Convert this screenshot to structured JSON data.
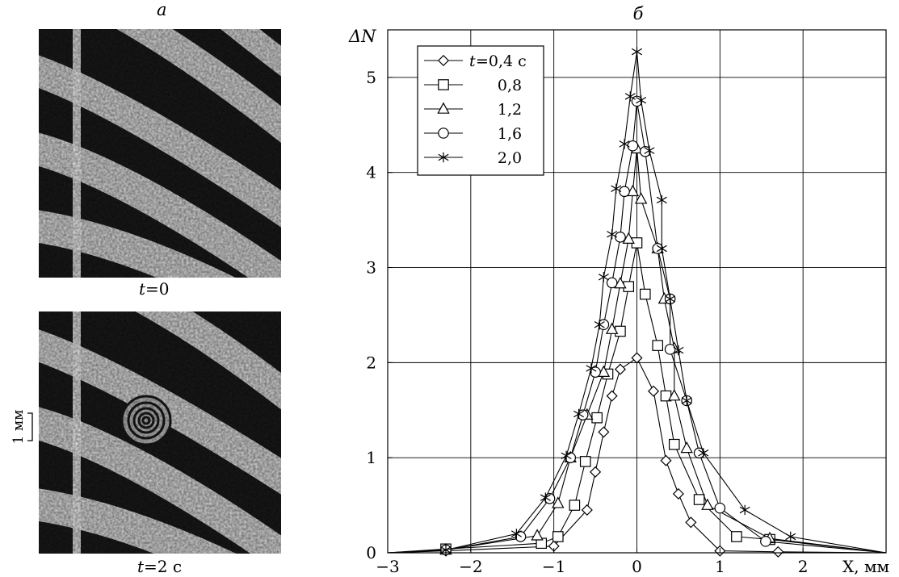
{
  "panel_a": {
    "label": "a",
    "top_caption_var": "t",
    "top_caption_val": "=0",
    "bottom_caption_var": "t",
    "bottom_caption_val": "=2 с",
    "scale_label": "1 мм"
  },
  "panel_b": {
    "label": "б"
  },
  "chart_data": {
    "type": "line",
    "xlabel": "X, мм",
    "ylabel": "ΔN",
    "xlim": [
      -3,
      3
    ],
    "ylim": [
      0,
      5.5
    ],
    "x_ticks": [
      -3,
      -2,
      -1,
      0,
      1,
      2
    ],
    "x_tick_labels": [
      "−3",
      "−2",
      "−1",
      "0",
      "1",
      "2"
    ],
    "y_ticks": [
      0,
      1,
      2,
      3,
      4,
      5
    ],
    "y_tick_labels": [
      "0",
      "1",
      "2",
      "3",
      "4",
      "5"
    ],
    "grid": true,
    "legend_position": "top-left",
    "legend_prefix": "t=",
    "legend_suffix": " с",
    "series": [
      {
        "name": "0,4",
        "marker": "diamond",
        "points": [
          [
            -3,
            0
          ],
          [
            -2.3,
            0.02
          ],
          [
            -1,
            0.07
          ],
          [
            -0.6,
            0.45
          ],
          [
            -0.5,
            0.85
          ],
          [
            -0.4,
            1.27
          ],
          [
            -0.3,
            1.65
          ],
          [
            -0.2,
            1.93
          ],
          [
            0,
            2.05
          ],
          [
            0.2,
            1.7
          ],
          [
            0.35,
            0.97
          ],
          [
            0.5,
            0.62
          ],
          [
            0.65,
            0.32
          ],
          [
            1.0,
            0.02
          ],
          [
            1.7,
            0.01
          ],
          [
            3,
            0
          ]
        ]
      },
      {
        "name": "0,8",
        "marker": "square",
        "points": [
          [
            -3,
            0
          ],
          [
            -2.3,
            0.04
          ],
          [
            -1.15,
            0.1
          ],
          [
            -0.95,
            0.17
          ],
          [
            -0.75,
            0.5
          ],
          [
            -0.62,
            0.96
          ],
          [
            -0.48,
            1.42
          ],
          [
            -0.35,
            1.88
          ],
          [
            -0.2,
            2.33
          ],
          [
            -0.1,
            2.8
          ],
          [
            0,
            3.26
          ],
          [
            0.1,
            2.72
          ],
          [
            0.25,
            2.18
          ],
          [
            0.35,
            1.65
          ],
          [
            0.45,
            1.14
          ],
          [
            0.75,
            0.56
          ],
          [
            1.2,
            0.17
          ],
          [
            1.6,
            0.14
          ],
          [
            3,
            0
          ]
        ]
      },
      {
        "name": "1,2",
        "marker": "triangle",
        "points": [
          [
            -3,
            0
          ],
          [
            -2.3,
            0.03
          ],
          [
            -1.2,
            0.18
          ],
          [
            -0.95,
            0.52
          ],
          [
            -0.8,
            1.0
          ],
          [
            -0.6,
            1.45
          ],
          [
            -0.4,
            1.9
          ],
          [
            -0.3,
            2.35
          ],
          [
            -0.2,
            2.83
          ],
          [
            -0.1,
            3.3
          ],
          [
            -0.05,
            3.8
          ],
          [
            0,
            4.25
          ],
          [
            0.05,
            3.72
          ],
          [
            0.25,
            3.2
          ],
          [
            0.33,
            2.67
          ],
          [
            0.45,
            2.15
          ],
          [
            0.45,
            1.65
          ],
          [
            0.6,
            1.1
          ],
          [
            0.85,
            0.5
          ],
          [
            1.6,
            0.15
          ],
          [
            3,
            0
          ]
        ]
      },
      {
        "name": "1,6",
        "marker": "circle",
        "points": [
          [
            -3,
            0
          ],
          [
            -2.3,
            0.03
          ],
          [
            -1.4,
            0.17
          ],
          [
            -1.05,
            0.57
          ],
          [
            -0.8,
            1.0
          ],
          [
            -0.65,
            1.45
          ],
          [
            -0.5,
            1.9
          ],
          [
            -0.4,
            2.4
          ],
          [
            -0.3,
            2.84
          ],
          [
            -0.2,
            3.32
          ],
          [
            -0.15,
            3.8
          ],
          [
            -0.05,
            4.28
          ],
          [
            0,
            4.75
          ],
          [
            0.1,
            4.22
          ],
          [
            0.25,
            3.2
          ],
          [
            0.4,
            2.67
          ],
          [
            0.4,
            2.14
          ],
          [
            0.6,
            1.6
          ],
          [
            0.75,
            1.05
          ],
          [
            1.0,
            0.47
          ],
          [
            1.55,
            0.12
          ],
          [
            3,
            0
          ]
        ]
      },
      {
        "name": "2,0",
        "marker": "asterisk",
        "points": [
          [
            -3,
            0
          ],
          [
            -2.3,
            0.03
          ],
          [
            -1.45,
            0.2
          ],
          [
            -1.1,
            0.58
          ],
          [
            -0.85,
            1.02
          ],
          [
            -0.7,
            1.46
          ],
          [
            -0.55,
            1.94
          ],
          [
            -0.45,
            2.4
          ],
          [
            -0.4,
            2.9
          ],
          [
            -0.3,
            3.35
          ],
          [
            -0.25,
            3.83
          ],
          [
            -0.15,
            4.3
          ],
          [
            -0.08,
            4.8
          ],
          [
            0,
            5.27
          ],
          [
            0.05,
            4.76
          ],
          [
            0.15,
            4.23
          ],
          [
            0.3,
            3.71
          ],
          [
            0.3,
            3.2
          ],
          [
            0.4,
            2.67
          ],
          [
            0.5,
            2.13
          ],
          [
            0.6,
            1.6
          ],
          [
            0.8,
            1.05
          ],
          [
            1.3,
            0.45
          ],
          [
            1.85,
            0.17
          ],
          [
            3,
            0
          ]
        ]
      }
    ]
  }
}
